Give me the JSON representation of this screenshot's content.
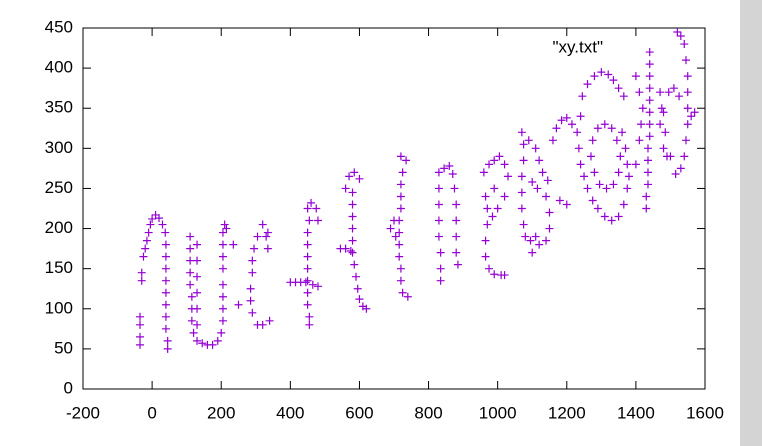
{
  "chart_data": {
    "type": "scatter",
    "xlim": [
      -200,
      1600
    ],
    "ylim": [
      0,
      450
    ],
    "xticks": [
      -200,
      0,
      200,
      400,
      600,
      800,
      1000,
      1200,
      1400,
      1600
    ],
    "yticks": [
      0,
      50,
      100,
      150,
      200,
      250,
      300,
      350,
      400,
      450
    ],
    "grid": false,
    "legend": "top-right",
    "marker": "+",
    "series": [
      {
        "name": "\"xy.txt\"",
        "color": "#9400d3",
        "x": [
          -35,
          -35,
          -35,
          -35,
          -30,
          -30,
          -25,
          -20,
          -15,
          -10,
          -5,
          0,
          10,
          20,
          30,
          38,
          40,
          40,
          40,
          40,
          40,
          40,
          40,
          40,
          45,
          45,
          110,
          110,
          110,
          110,
          110,
          115,
          115,
          115,
          120,
          130,
          145,
          160,
          175,
          190,
          200,
          205,
          205,
          205,
          205,
          205,
          205,
          205,
          205,
          210,
          130,
          130,
          130,
          130,
          130,
          130,
          215,
          235,
          335,
          320,
          305,
          295,
          290,
          290,
          285,
          285,
          290,
          305,
          320,
          340,
          335,
          250,
          330,
          450,
          460,
          475,
          480,
          455,
          450,
          450,
          450,
          450,
          450,
          450,
          450,
          455,
          455,
          400,
          415,
          430,
          445,
          465,
          480,
          560,
          570,
          585,
          600,
          580,
          580,
          580,
          580,
          580,
          580,
          585,
          590,
          595,
          600,
          610,
          620,
          545,
          560,
          575,
          720,
          735,
          725,
          720,
          720,
          720,
          715,
          715,
          715,
          715,
          720,
          720,
          725,
          740,
          690,
          700,
          705,
          830,
          830,
          830,
          830,
          830,
          835,
          835,
          835,
          845,
          860,
          870,
          875,
          880,
          880,
          880,
          880,
          885,
          960,
          975,
          990,
          1005,
          1020,
          1030,
          1020,
          1000,
          985,
          970,
          965,
          990,
          970,
          965,
          965,
          975,
          990,
          1010,
          1020,
          1070,
          1075,
          1075,
          1070,
          1070,
          1070,
          1075,
          1080,
          1095,
          1110,
          1090,
          1110,
          1120,
          1130,
          1145,
          1115,
          1100,
          1140,
          1150,
          1150,
          1140,
          1120,
          1100,
          1160,
          1170,
          1185,
          1200,
          1215,
          1230,
          1240,
          1245,
          1260,
          1280,
          1300,
          1320,
          1335,
          1350,
          1365,
          1200,
          1180,
          1235,
          1240,
          1250,
          1260,
          1275,
          1290,
          1310,
          1330,
          1350,
          1365,
          1375,
          1380,
          1270,
          1275,
          1290,
          1310,
          1330,
          1345,
          1355,
          1350,
          1335,
          1315,
          1295,
          1280,
          1360,
          1370,
          1375,
          1440,
          1440,
          1440,
          1440,
          1440,
          1440,
          1440,
          1440,
          1435,
          1435,
          1435,
          1435,
          1430,
          1430,
          1400,
          1410,
          1420,
          1415,
          1410,
          1400,
          1520,
          1530,
          1540,
          1545,
          1550,
          1550,
          1550,
          1550,
          1545,
          1540,
          1530,
          1515,
          1500,
          1485,
          1480,
          1495,
          1510,
          1525,
          1470,
          1475,
          1470,
          1480,
          1490,
          1560,
          1570
        ],
        "values": [
          55,
          65,
          80,
          90,
          135,
          145,
          165,
          175,
          185,
          195,
          205,
          212,
          217,
          213,
          205,
          195,
          180,
          165,
          150,
          135,
          120,
          105,
          90,
          75,
          60,
          50,
          190,
          175,
          160,
          145,
          130,
          115,
          100,
          85,
          70,
          60,
          57,
          55,
          55,
          60,
          70,
          85,
          100,
          115,
          130,
          150,
          165,
          180,
          195,
          205,
          180,
          160,
          140,
          120,
          100,
          80,
          200,
          180,
          195,
          205,
          190,
          175,
          160,
          145,
          125,
          110,
          95,
          80,
          80,
          85,
          175,
          105,
          190,
          225,
          232,
          225,
          210,
          210,
          195,
          180,
          165,
          150,
          135,
          120,
          105,
          90,
          80,
          133,
          133,
          133,
          133,
          130,
          128,
          250,
          265,
          270,
          262,
          245,
          230,
          215,
          200,
          185,
          170,
          155,
          140,
          125,
          112,
          103,
          100,
          175,
          175,
          172,
          290,
          285,
          270,
          255,
          240,
          225,
          210,
          195,
          180,
          165,
          150,
          135,
          120,
          115,
          200,
          210,
          190,
          270,
          250,
          230,
          210,
          190,
          170,
          150,
          135,
          275,
          278,
          268,
          250,
          230,
          210,
          190,
          170,
          155,
          270,
          280,
          285,
          290,
          280,
          265,
          240,
          225,
          215,
          225,
          240,
          250,
          205,
          185,
          165,
          150,
          143,
          142,
          142,
          320,
          305,
          285,
          265,
          245,
          225,
          205,
          190,
          185,
          190,
          310,
          300,
          285,
          270,
          260,
          250,
          258,
          240,
          220,
          200,
          185,
          180,
          170,
          310,
          325,
          335,
          338,
          330,
          320,
          340,
          365,
          380,
          390,
          395,
          392,
          385,
          375,
          365,
          230,
          235,
          300,
          280,
          265,
          250,
          235,
          225,
          215,
          210,
          215,
          230,
          250,
          265,
          290,
          310,
          325,
          330,
          325,
          310,
          290,
          270,
          255,
          250,
          255,
          270,
          320,
          300,
          280,
          420,
          405,
          390,
          375,
          360,
          345,
          330,
          315,
          300,
          285,
          270,
          255,
          240,
          225,
          390,
          370,
          350,
          330,
          310,
          280,
          445,
          440,
          430,
          410,
          390,
          370,
          350,
          330,
          310,
          290,
          275,
          268,
          290,
          320,
          345,
          370,
          375,
          365,
          370,
          350,
          330,
          300,
          290,
          340,
          345
        ]
      }
    ]
  }
}
